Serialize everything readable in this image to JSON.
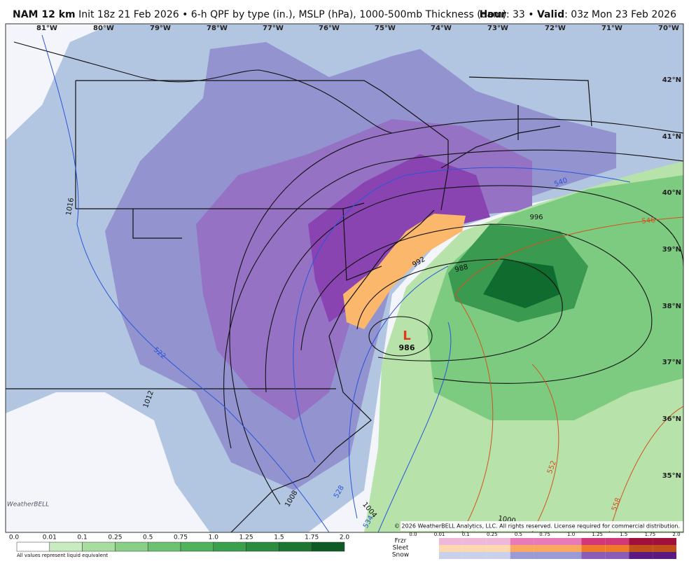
{
  "header": {
    "model": "NAM 12 km",
    "description": "Init 18z 21 Feb 2026 • 6-h QPF by type (in.), MSLP (hPa), 1000-500mb Thickness (dam)",
    "hour_label": "Hour",
    "hour_value": ": 33 •",
    "valid_label": "Valid",
    "valid_value": ": 03z Mon 23 Feb 2026"
  },
  "map": {
    "longitudes": [
      "81°W",
      "80°W",
      "79°W",
      "78°W",
      "77°W",
      "76°W",
      "75°W",
      "74°W",
      "73°W",
      "72°W",
      "71°W",
      "70°W"
    ],
    "latitudes": [
      "42°N",
      "41°N",
      "40°N",
      "39°N",
      "38°N",
      "37°N",
      "36°N",
      "35°N"
    ],
    "low": {
      "symbol": "L",
      "pressure": "986"
    },
    "isobar_labels": [
      "1016",
      "1012",
      "1008",
      "1004",
      "1000",
      "996",
      "992",
      "988"
    ],
    "thickness_labels": [
      "540",
      "546",
      "552",
      "558",
      "534",
      "528",
      "522"
    ],
    "logo": "WeatherBELL",
    "copyright": "© 2026 WeatherBELL Analytics, LLC. All rights reserved. License required for commercial distribution."
  },
  "legend": {
    "scale": [
      "0.0",
      "0.01",
      "0.1",
      "0.25",
      "0.5",
      "0.75",
      "1.0",
      "1.25",
      "1.5",
      "1.75",
      "2.0"
    ],
    "note": "All values represent liquid equivalent",
    "types": [
      "Frzr",
      "Sleet",
      "Snow"
    ]
  }
}
